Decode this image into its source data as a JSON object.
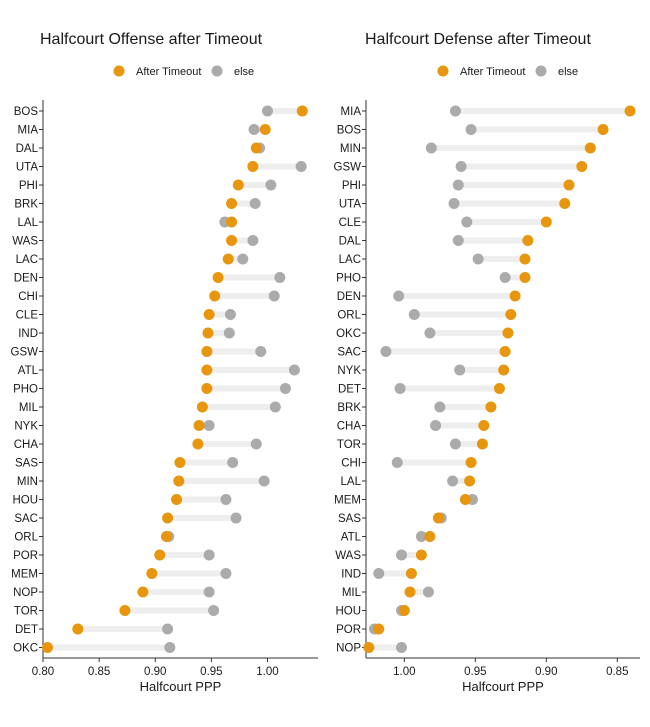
{
  "colors": {
    "after": "#E8960E",
    "else": "#ABABAB",
    "segment": "#EEEEEE",
    "axis": "#333333"
  },
  "chart_data": [
    {
      "type": "dumbbell",
      "title": "Halfcourt Offense after Timeout",
      "xlabel": "Halfcourt PPP",
      "xlim": [
        0.8,
        1.045
      ],
      "x_reversed": false,
      "ticks": [
        0.8,
        0.85,
        0.9,
        0.95,
        1.0
      ],
      "tick_labels": [
        "0.80",
        "0.85",
        "0.90",
        "0.95",
        "1.00"
      ],
      "legend": [
        {
          "key": "after",
          "label": "After Timeout"
        },
        {
          "key": "else",
          "label": "else"
        }
      ],
      "teams": [
        "BOS",
        "MIA",
        "DAL",
        "UTA",
        "PHI",
        "BRK",
        "LAL",
        "WAS",
        "LAC",
        "DEN",
        "CHI",
        "CLE",
        "IND",
        "GSW",
        "ATL",
        "PHO",
        "MIL",
        "NYK",
        "CHA",
        "SAS",
        "MIN",
        "HOU",
        "SAC",
        "ORL",
        "POR",
        "MEM",
        "NOP",
        "TOR",
        "DET",
        "OKC"
      ],
      "after_timeout": [
        1.031,
        0.998,
        0.99,
        0.987,
        0.974,
        0.968,
        0.968,
        0.968,
        0.965,
        0.956,
        0.953,
        0.948,
        0.947,
        0.946,
        0.946,
        0.946,
        0.942,
        0.939,
        0.938,
        0.922,
        0.921,
        0.919,
        0.911,
        0.91,
        0.904,
        0.897,
        0.889,
        0.873,
        0.831,
        0.804
      ],
      "else": [
        1.0,
        0.988,
        0.993,
        1.03,
        1.003,
        0.989,
        0.962,
        0.987,
        0.978,
        1.011,
        1.006,
        0.967,
        0.966,
        0.994,
        1.024,
        1.016,
        1.007,
        0.948,
        0.99,
        0.969,
        0.997,
        0.963,
        0.972,
        0.912,
        0.948,
        0.963,
        0.948,
        0.952,
        0.911,
        0.913
      ]
    },
    {
      "type": "dumbbell",
      "title": "Halfcourt Defense after Timeout",
      "xlabel": "Halfcourt PPP",
      "xlim": [
        0.834,
        1.027
      ],
      "x_reversed": true,
      "ticks": [
        1.0,
        0.95,
        0.9,
        0.85
      ],
      "tick_labels": [
        "1.00",
        "0.95",
        "0.90",
        "0.85"
      ],
      "legend": [
        {
          "key": "after",
          "label": "After Timeout"
        },
        {
          "key": "else",
          "label": "else"
        }
      ],
      "teams": [
        "MIA",
        "BOS",
        "MIN",
        "GSW",
        "PHI",
        "UTA",
        "CLE",
        "DAL",
        "LAC",
        "PHO",
        "DEN",
        "ORL",
        "OKC",
        "SAC",
        "NYK",
        "DET",
        "BRK",
        "CHA",
        "TOR",
        "CHI",
        "LAL",
        "MEM",
        "SAS",
        "ATL",
        "WAS",
        "IND",
        "MIL",
        "HOU",
        "POR",
        "NOP"
      ],
      "after_timeout": [
        0.841,
        0.86,
        0.869,
        0.875,
        0.884,
        0.887,
        0.9,
        0.913,
        0.915,
        0.915,
        0.922,
        0.925,
        0.927,
        0.929,
        0.93,
        0.933,
        0.939,
        0.944,
        0.945,
        0.953,
        0.954,
        0.957,
        0.976,
        0.982,
        0.988,
        0.995,
        0.996,
        1.0,
        1.018,
        1.025
      ],
      "else": [
        0.964,
        0.953,
        0.981,
        0.96,
        0.962,
        0.965,
        0.956,
        0.962,
        0.948,
        0.929,
        1.004,
        0.993,
        0.982,
        1.013,
        0.961,
        1.003,
        0.975,
        0.978,
        0.964,
        1.005,
        0.966,
        0.952,
        0.974,
        0.988,
        1.002,
        1.018,
        0.983,
        1.002,
        1.021,
        1.002
      ]
    }
  ]
}
